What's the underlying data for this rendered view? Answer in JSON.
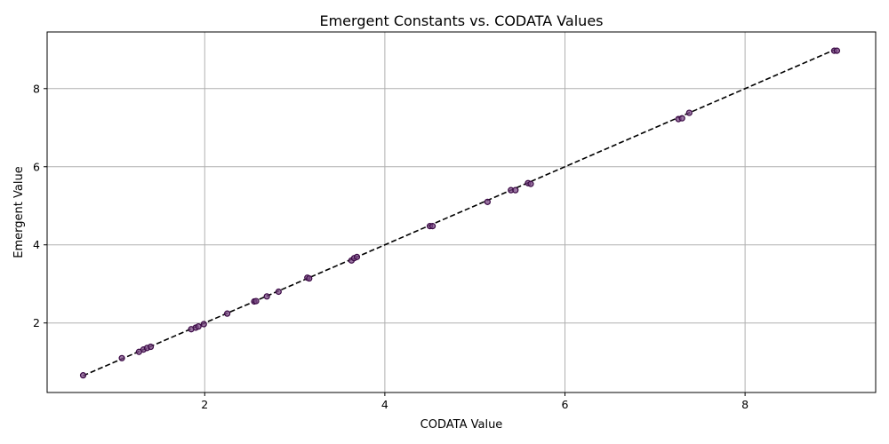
{
  "chart_data": {
    "type": "scatter",
    "title": "Emergent Constants vs. CODATA Values",
    "xlabel": "CODATA Value",
    "ylabel": "Emergent Value",
    "xlim": [
      0.25,
      9.45
    ],
    "ylim": [
      0.22,
      9.45
    ],
    "xticks": [
      2,
      4,
      6,
      8
    ],
    "yticks": [
      2,
      4,
      6,
      8
    ],
    "grid": true,
    "marker_fill": "#7b4a85",
    "marker_edge": "#3b0a45",
    "line_color": "#000000",
    "reference_line": {
      "style": "dashed",
      "x": [
        0.65,
        9.0
      ],
      "y": [
        0.65,
        9.0
      ]
    },
    "points": [
      {
        "x": 0.65,
        "y": 0.66
      },
      {
        "x": 1.08,
        "y": 1.1
      },
      {
        "x": 1.27,
        "y": 1.26
      },
      {
        "x": 1.32,
        "y": 1.32
      },
      {
        "x": 1.36,
        "y": 1.36
      },
      {
        "x": 1.4,
        "y": 1.39
      },
      {
        "x": 1.85,
        "y": 1.84
      },
      {
        "x": 1.9,
        "y": 1.88
      },
      {
        "x": 1.93,
        "y": 1.91
      },
      {
        "x": 1.99,
        "y": 1.97
      },
      {
        "x": 2.25,
        "y": 2.24
      },
      {
        "x": 2.55,
        "y": 2.55
      },
      {
        "x": 2.57,
        "y": 2.56
      },
      {
        "x": 2.69,
        "y": 2.68
      },
      {
        "x": 2.82,
        "y": 2.8
      },
      {
        "x": 3.14,
        "y": 3.16
      },
      {
        "x": 3.16,
        "y": 3.14
      },
      {
        "x": 3.63,
        "y": 3.6
      },
      {
        "x": 3.66,
        "y": 3.66
      },
      {
        "x": 3.69,
        "y": 3.69
      },
      {
        "x": 4.5,
        "y": 4.48
      },
      {
        "x": 4.53,
        "y": 4.48
      },
      {
        "x": 5.14,
        "y": 5.1
      },
      {
        "x": 5.4,
        "y": 5.4
      },
      {
        "x": 5.45,
        "y": 5.4
      },
      {
        "x": 5.59,
        "y": 5.58
      },
      {
        "x": 5.62,
        "y": 5.56
      },
      {
        "x": 7.26,
        "y": 7.22
      },
      {
        "x": 7.3,
        "y": 7.24
      },
      {
        "x": 7.38,
        "y": 7.38
      },
      {
        "x": 8.99,
        "y": 8.97
      },
      {
        "x": 9.02,
        "y": 8.97
      }
    ]
  }
}
